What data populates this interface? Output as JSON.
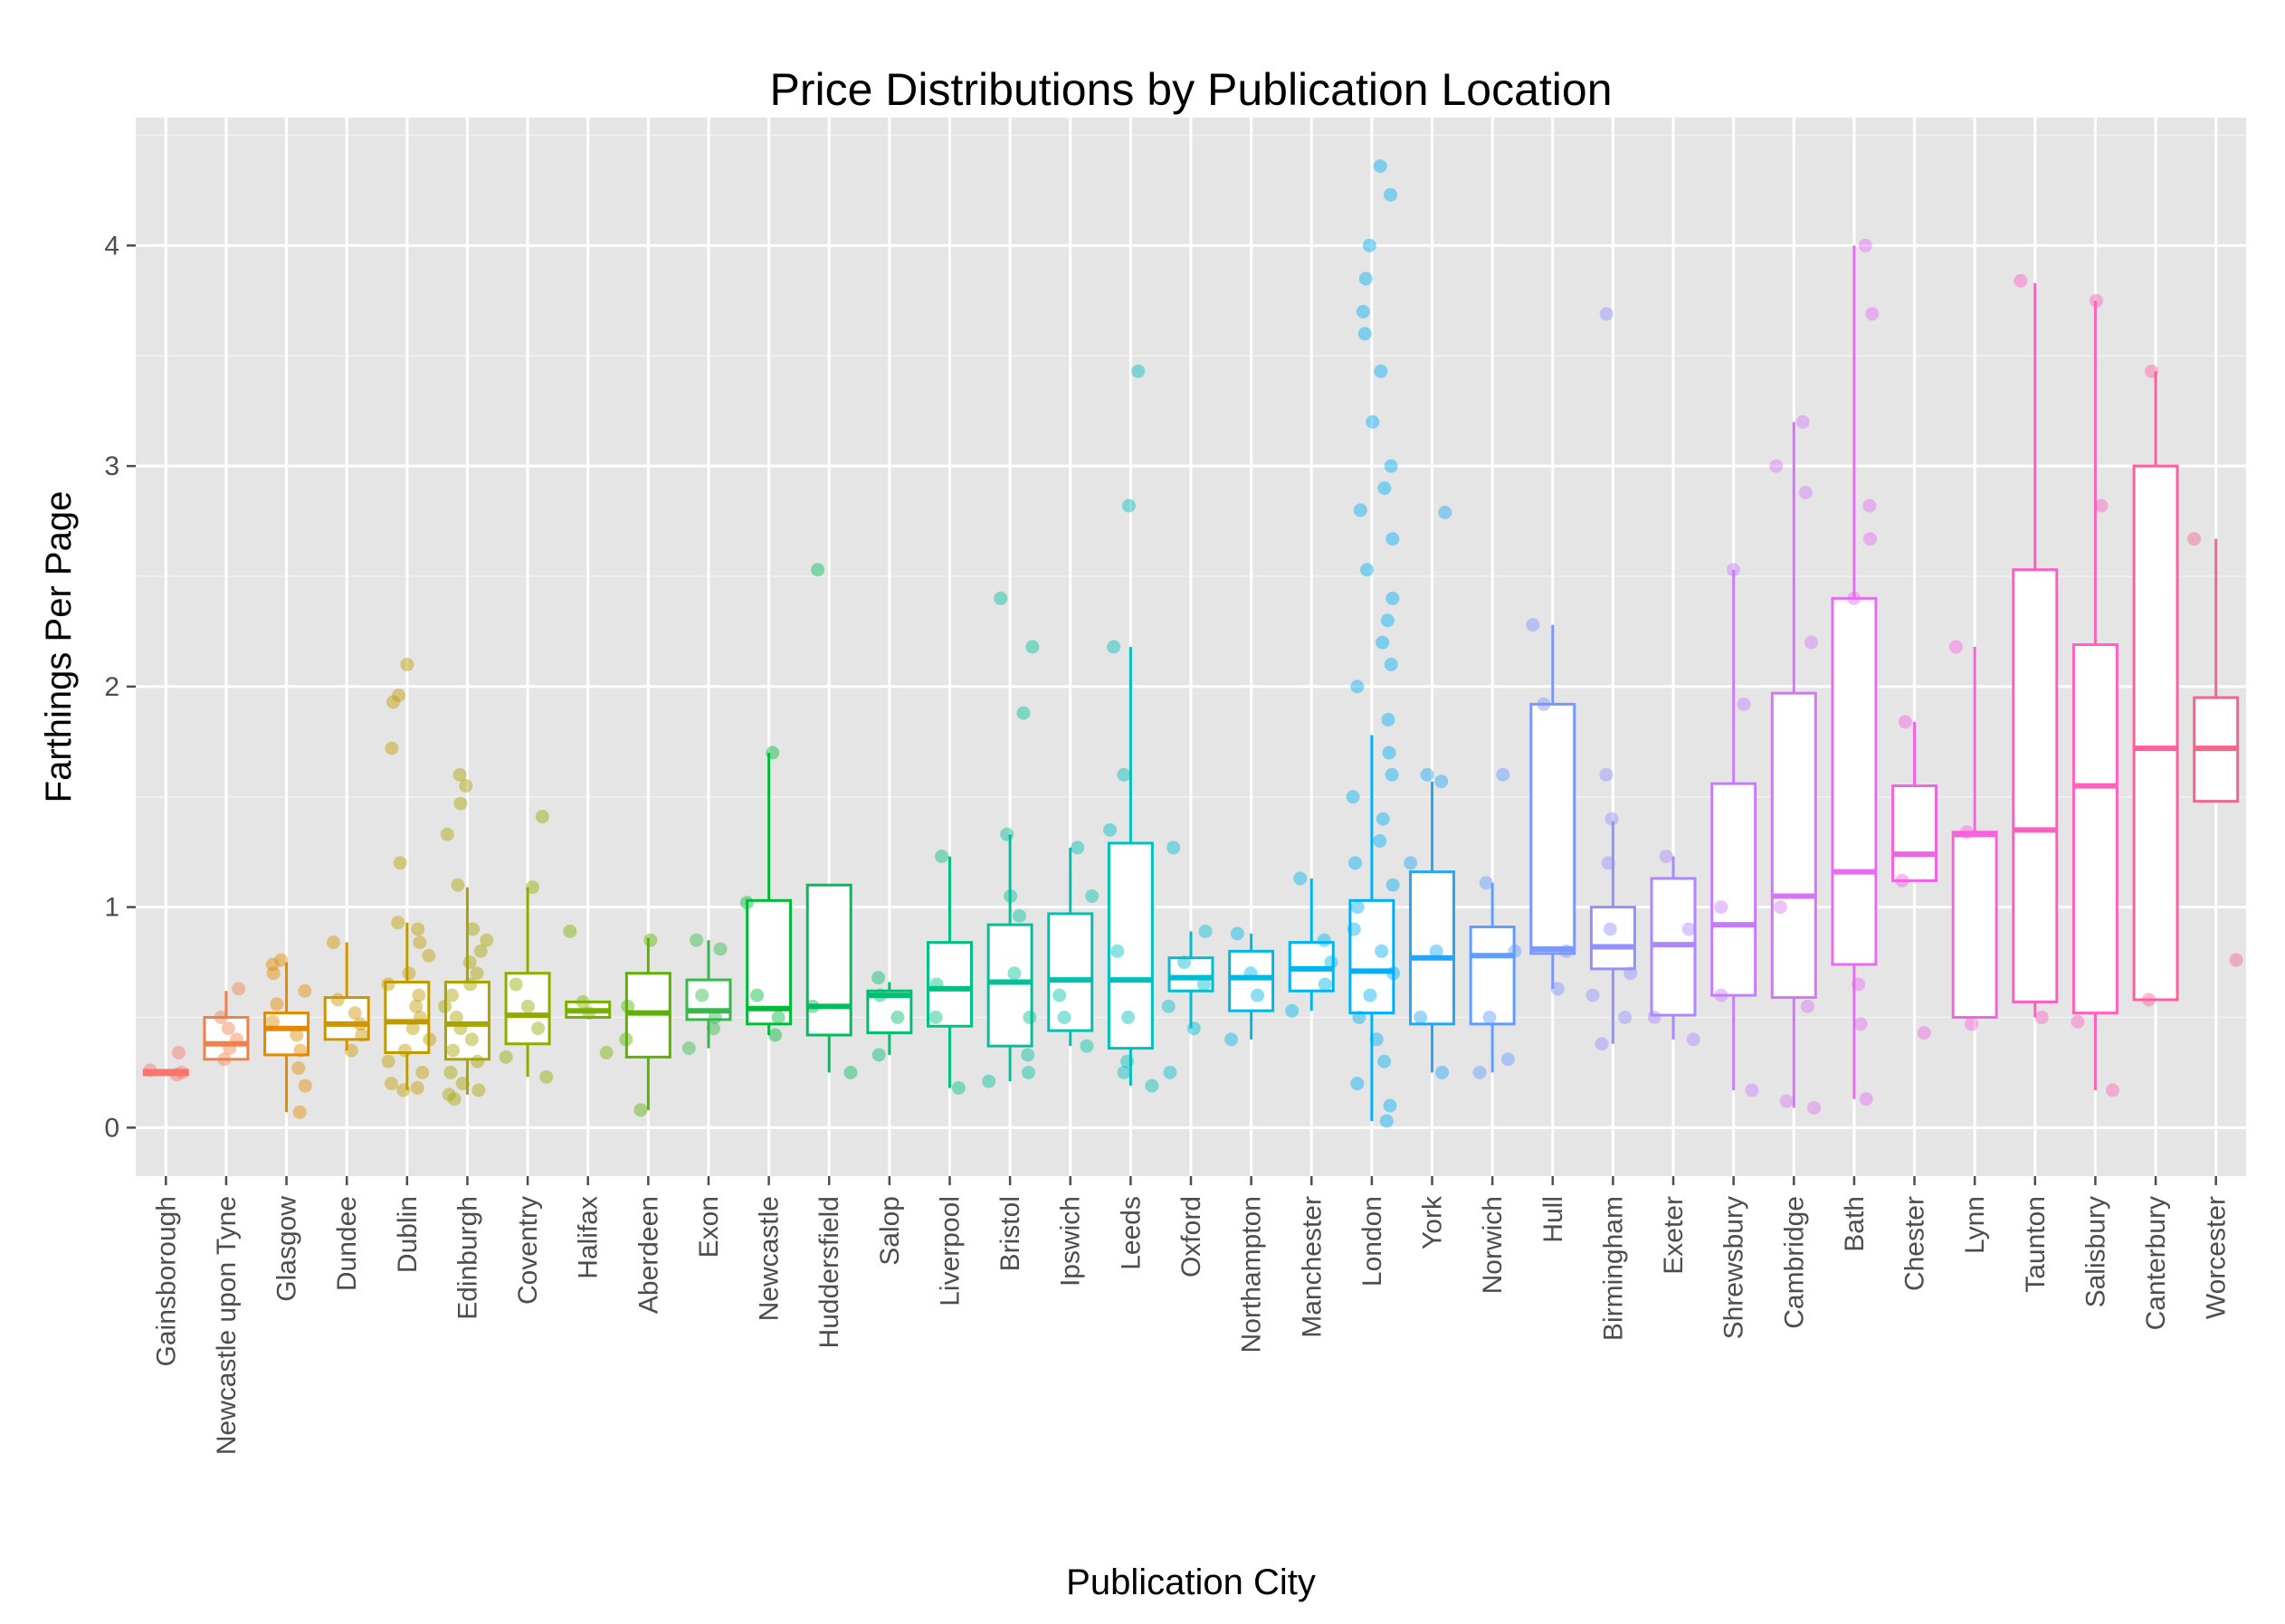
{
  "chart_data": {
    "type": "box",
    "title": "Price Distributions by Publication Location",
    "xlabel": "Publication City",
    "ylabel": "Farthings Per Page",
    "ylim": [
      -0.22,
      4.58
    ],
    "yticks": [
      0,
      1,
      2,
      3,
      4
    ],
    "grid": true,
    "background": "#e5e5e5",
    "categories": [
      "Gainsborough",
      "Newcastle upon Tyne",
      "Glasgow",
      "Dundee",
      "Dublin",
      "Edinburgh",
      "Coventry",
      "Halifax",
      "Aberdeen",
      "Exon",
      "Newcastle",
      "Huddersfield",
      "Salop",
      "Liverpool",
      "Bristol",
      "Ipswich",
      "Leeds",
      "Oxford",
      "Northampton",
      "Manchester",
      "London",
      "York",
      "Norwich",
      "Hull",
      "Birmingham",
      "Exeter",
      "Shrewsbury",
      "Cambridge",
      "Bath",
      "Chester",
      "Lynn",
      "Taunton",
      "Salisbury",
      "Canterbury",
      "Worcester"
    ],
    "colors": [
      "#f8766d",
      "#f0814c",
      "#e38900",
      "#d09400",
      "#bf9b00",
      "#a9a400",
      "#93aa00",
      "#79af00",
      "#5bb300",
      "#36b84c",
      "#00ba38",
      "#00bc5a",
      "#00be70",
      "#00c085",
      "#00c19a",
      "#00c1ad",
      "#00bfc0",
      "#00bdd1",
      "#00b9e3",
      "#00b5ee",
      "#00b0f6",
      "#22a7f6",
      "#619cff",
      "#7a97ff",
      "#9590ff",
      "#ad87ff",
      "#c77cff",
      "#d675f5",
      "#e76bf3",
      "#f064e3",
      "#f962dd",
      "#fc5fbf",
      "#ff62bc",
      "#ff5fa0",
      "#f4648b"
    ],
    "series": [
      {
        "name": "Gainsborough",
        "q1": 0.24,
        "median": 0.25,
        "q3": 0.26,
        "whisker_low": 0.24,
        "whisker_high": 0.26,
        "points": [
          0.24,
          0.25,
          0.26,
          0.34
        ]
      },
      {
        "name": "Newcastle upon Tyne",
        "q1": 0.31,
        "median": 0.38,
        "q3": 0.5,
        "whisker_low": 0.31,
        "whisker_high": 0.62,
        "points": [
          0.31,
          0.36,
          0.4,
          0.45,
          0.5,
          0.63
        ]
      },
      {
        "name": "Glasgow",
        "q1": 0.33,
        "median": 0.45,
        "q3": 0.52,
        "whisker_low": 0.07,
        "whisker_high": 0.75,
        "points": [
          0.07,
          0.19,
          0.27,
          0.35,
          0.42,
          0.48,
          0.56,
          0.62,
          0.7,
          0.74,
          0.76
        ]
      },
      {
        "name": "Dundee",
        "q1": 0.4,
        "median": 0.47,
        "q3": 0.59,
        "whisker_low": 0.35,
        "whisker_high": 0.84,
        "points": [
          0.35,
          0.42,
          0.47,
          0.52,
          0.58,
          0.84
        ]
      },
      {
        "name": "Dublin",
        "q1": 0.34,
        "median": 0.48,
        "q3": 0.66,
        "whisker_low": 0.17,
        "whisker_high": 0.93,
        "points": [
          0.17,
          0.18,
          0.2,
          0.25,
          0.3,
          0.35,
          0.4,
          0.45,
          0.5,
          0.55,
          0.6,
          0.65,
          0.7,
          0.78,
          0.84,
          0.9,
          0.93,
          1.2,
          1.72,
          1.93,
          1.96,
          2.1
        ]
      },
      {
        "name": "Edinburgh",
        "q1": 0.31,
        "median": 0.47,
        "q3": 0.66,
        "whisker_low": 0.15,
        "whisker_high": 1.09,
        "points": [
          0.13,
          0.15,
          0.17,
          0.2,
          0.25,
          0.3,
          0.35,
          0.4,
          0.45,
          0.5,
          0.55,
          0.6,
          0.65,
          0.7,
          0.75,
          0.8,
          0.85,
          0.9,
          1.1,
          1.33,
          1.47,
          1.55,
          1.6
        ]
      },
      {
        "name": "Coventry",
        "q1": 0.38,
        "median": 0.51,
        "q3": 0.7,
        "whisker_low": 0.23,
        "whisker_high": 1.09,
        "points": [
          0.23,
          0.32,
          0.45,
          0.55,
          0.65,
          1.09,
          1.41
        ]
      },
      {
        "name": "Halifax",
        "q1": 0.5,
        "median": 0.53,
        "q3": 0.57,
        "whisker_low": 0.5,
        "whisker_high": 0.57,
        "points": [
          0.34,
          0.52,
          0.57,
          0.89
        ]
      },
      {
        "name": "Aberdeen",
        "q1": 0.32,
        "median": 0.52,
        "q3": 0.7,
        "whisker_low": 0.08,
        "whisker_high": 0.86,
        "points": [
          0.08,
          0.4,
          0.55,
          0.85
        ]
      },
      {
        "name": "Exon",
        "q1": 0.49,
        "median": 0.53,
        "q3": 0.67,
        "whisker_low": 0.36,
        "whisker_high": 0.85,
        "points": [
          0.36,
          0.45,
          0.5,
          0.6,
          0.81,
          0.85
        ]
      },
      {
        "name": "Newcastle",
        "q1": 0.47,
        "median": 0.54,
        "q3": 1.03,
        "whisker_low": 0.42,
        "whisker_high": 1.7,
        "points": [
          0.42,
          0.5,
          0.6,
          1.02,
          1.7
        ]
      },
      {
        "name": "Huddersfield",
        "q1": 0.42,
        "median": 0.55,
        "q3": 1.1,
        "whisker_low": 0.25,
        "whisker_high": 1.1,
        "points": [
          0.25,
          0.55,
          2.53
        ]
      },
      {
        "name": "Salop",
        "q1": 0.43,
        "median": 0.6,
        "q3": 0.62,
        "whisker_low": 0.33,
        "whisker_high": 0.66,
        "points": [
          0.33,
          0.5,
          0.6,
          0.68
        ]
      },
      {
        "name": "Liverpool",
        "q1": 0.46,
        "median": 0.63,
        "q3": 0.84,
        "whisker_low": 0.18,
        "whisker_high": 1.23,
        "points": [
          0.18,
          0.5,
          0.65,
          1.23
        ]
      },
      {
        "name": "Bristol",
        "q1": 0.37,
        "median": 0.66,
        "q3": 0.92,
        "whisker_low": 0.21,
        "whisker_high": 1.33,
        "points": [
          0.21,
          0.25,
          0.33,
          0.5,
          0.7,
          0.96,
          1.05,
          1.33,
          1.88,
          2.18,
          2.4
        ]
      },
      {
        "name": "Ipswich",
        "q1": 0.44,
        "median": 0.67,
        "q3": 0.97,
        "whisker_low": 0.37,
        "whisker_high": 1.27,
        "points": [
          0.37,
          0.5,
          0.6,
          1.05,
          1.27
        ]
      },
      {
        "name": "Leeds",
        "q1": 0.36,
        "median": 0.67,
        "q3": 1.29,
        "whisker_low": 0.19,
        "whisker_high": 2.18,
        "points": [
          0.19,
          0.25,
          0.3,
          0.5,
          0.8,
          1.35,
          1.6,
          2.18,
          2.82,
          3.43
        ]
      },
      {
        "name": "Oxford",
        "q1": 0.62,
        "median": 0.68,
        "q3": 0.77,
        "whisker_low": 0.45,
        "whisker_high": 0.89,
        "points": [
          0.25,
          0.45,
          0.55,
          0.65,
          0.75,
          0.89,
          1.27
        ]
      },
      {
        "name": "Northampton",
        "q1": 0.53,
        "median": 0.68,
        "q3": 0.8,
        "whisker_low": 0.4,
        "whisker_high": 0.88,
        "points": [
          0.4,
          0.6,
          0.7,
          0.88
        ]
      },
      {
        "name": "Manchester",
        "q1": 0.62,
        "median": 0.72,
        "q3": 0.84,
        "whisker_low": 0.53,
        "whisker_high": 1.13,
        "points": [
          0.53,
          0.65,
          0.75,
          0.85,
          1.13
        ]
      },
      {
        "name": "London",
        "q1": 0.52,
        "median": 0.71,
        "q3": 1.03,
        "whisker_low": 0.03,
        "whisker_high": 1.78,
        "points": [
          0.03,
          0.1,
          0.2,
          0.3,
          0.4,
          0.5,
          0.6,
          0.7,
          0.8,
          0.9,
          1.0,
          1.1,
          1.2,
          1.3,
          1.4,
          1.5,
          1.6,
          1.7,
          1.85,
          2.0,
          2.1,
          2.2,
          2.3,
          2.4,
          2.53,
          2.67,
          2.8,
          2.9,
          3.0,
          3.2,
          3.43,
          3.6,
          3.7,
          3.85,
          4.0,
          4.23,
          4.36
        ]
      },
      {
        "name": "York",
        "q1": 0.47,
        "median": 0.77,
        "q3": 1.16,
        "whisker_low": 0.25,
        "whisker_high": 1.57,
        "points": [
          0.25,
          0.5,
          0.8,
          1.2,
          1.57,
          1.6,
          2.79
        ]
      },
      {
        "name": "Norwich",
        "q1": 0.47,
        "median": 0.78,
        "q3": 0.91,
        "whisker_low": 0.25,
        "whisker_high": 1.11,
        "points": [
          0.25,
          0.31,
          0.5,
          0.8,
          1.11,
          1.6
        ]
      },
      {
        "name": "Hull",
        "q1": 0.79,
        "median": 0.81,
        "q3": 1.92,
        "whisker_low": 0.63,
        "whisker_high": 2.28,
        "points": [
          0.63,
          0.8,
          1.92,
          2.28
        ]
      },
      {
        "name": "Birmingham",
        "q1": 0.72,
        "median": 0.82,
        "q3": 1.0,
        "whisker_low": 0.38,
        "whisker_high": 1.39,
        "points": [
          0.38,
          0.5,
          0.6,
          0.7,
          0.9,
          1.2,
          1.4,
          1.6,
          3.69
        ]
      },
      {
        "name": "Exeter",
        "q1": 0.51,
        "median": 0.83,
        "q3": 1.13,
        "whisker_low": 0.4,
        "whisker_high": 1.23,
        "points": [
          0.4,
          0.5,
          0.9,
          1.23
        ]
      },
      {
        "name": "Shrewsbury",
        "q1": 0.6,
        "median": 0.92,
        "q3": 1.56,
        "whisker_low": 0.17,
        "whisker_high": 2.53,
        "points": [
          0.17,
          0.6,
          1.0,
          1.92,
          2.53
        ]
      },
      {
        "name": "Cambridge",
        "q1": 0.59,
        "median": 1.05,
        "q3": 1.97,
        "whisker_low": 0.09,
        "whisker_high": 3.2,
        "points": [
          0.09,
          0.12,
          0.55,
          1.0,
          2.2,
          2.88,
          3.0,
          3.2
        ]
      },
      {
        "name": "Bath",
        "q1": 0.74,
        "median": 1.16,
        "q3": 2.4,
        "whisker_low": 0.13,
        "whisker_high": 4.0,
        "points": [
          0.13,
          0.47,
          0.65,
          2.4,
          2.67,
          2.82,
          3.69,
          4.0
        ]
      },
      {
        "name": "Chester",
        "q1": 1.12,
        "median": 1.24,
        "q3": 1.55,
        "whisker_low": 1.12,
        "whisker_high": 1.84,
        "points": [
          0.43,
          1.12,
          1.84
        ]
      },
      {
        "name": "Lynn",
        "q1": 0.5,
        "median": 1.33,
        "q3": 1.34,
        "whisker_low": 0.5,
        "whisker_high": 2.18,
        "points": [
          0.47,
          1.34,
          2.18
        ]
      },
      {
        "name": "Taunton",
        "q1": 0.57,
        "median": 1.35,
        "q3": 2.53,
        "whisker_low": 0.5,
        "whisker_high": 3.83,
        "points": [
          0.5,
          3.84
        ]
      },
      {
        "name": "Salisbury",
        "q1": 0.52,
        "median": 1.55,
        "q3": 2.19,
        "whisker_low": 0.17,
        "whisker_high": 3.75,
        "points": [
          0.17,
          0.48,
          2.82,
          3.75
        ]
      },
      {
        "name": "Canterbury",
        "q1": 0.58,
        "median": 1.72,
        "q3": 3.0,
        "whisker_low": 0.58,
        "whisker_high": 3.43,
        "points": [
          0.58,
          3.43
        ]
      },
      {
        "name": "Worcester",
        "q1": 1.48,
        "median": 1.72,
        "q3": 1.95,
        "whisker_low": 1.48,
        "whisker_high": 2.67,
        "points": [
          0.76,
          2.67
        ]
      }
    ]
  }
}
